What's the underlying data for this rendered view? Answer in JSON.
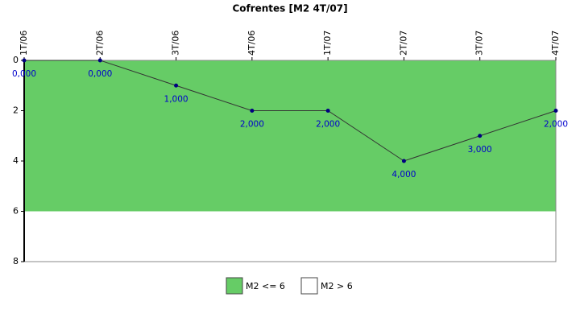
{
  "chart_data": {
    "type": "line",
    "title": "Cofrentes [M2 4T/07]",
    "categories": [
      "1T/06",
      "2T/06",
      "3T/06",
      "4T/06",
      "1T/07",
      "2T/07",
      "3T/07",
      "4T/07"
    ],
    "series": [
      {
        "name": "M2",
        "color": "#333333",
        "marker_color": "#000080",
        "values": [
          0,
          0,
          1,
          2,
          2,
          4,
          3,
          2
        ],
        "value_labels": [
          "0,000",
          "0,000",
          "1,000",
          "2,000",
          "2,000",
          "4,000",
          "3,000",
          "2,000"
        ]
      }
    ],
    "bands": [
      {
        "name": "M2 <= 6",
        "color": "#66cc66",
        "from": 0,
        "to": 6
      },
      {
        "name": "M2 > 6",
        "color": "#ffffff",
        "from": 6,
        "to": 8
      }
    ],
    "ylim": [
      0,
      8
    ],
    "y_inverted": true,
    "yticks": [
      0,
      2,
      4,
      6,
      8
    ]
  }
}
